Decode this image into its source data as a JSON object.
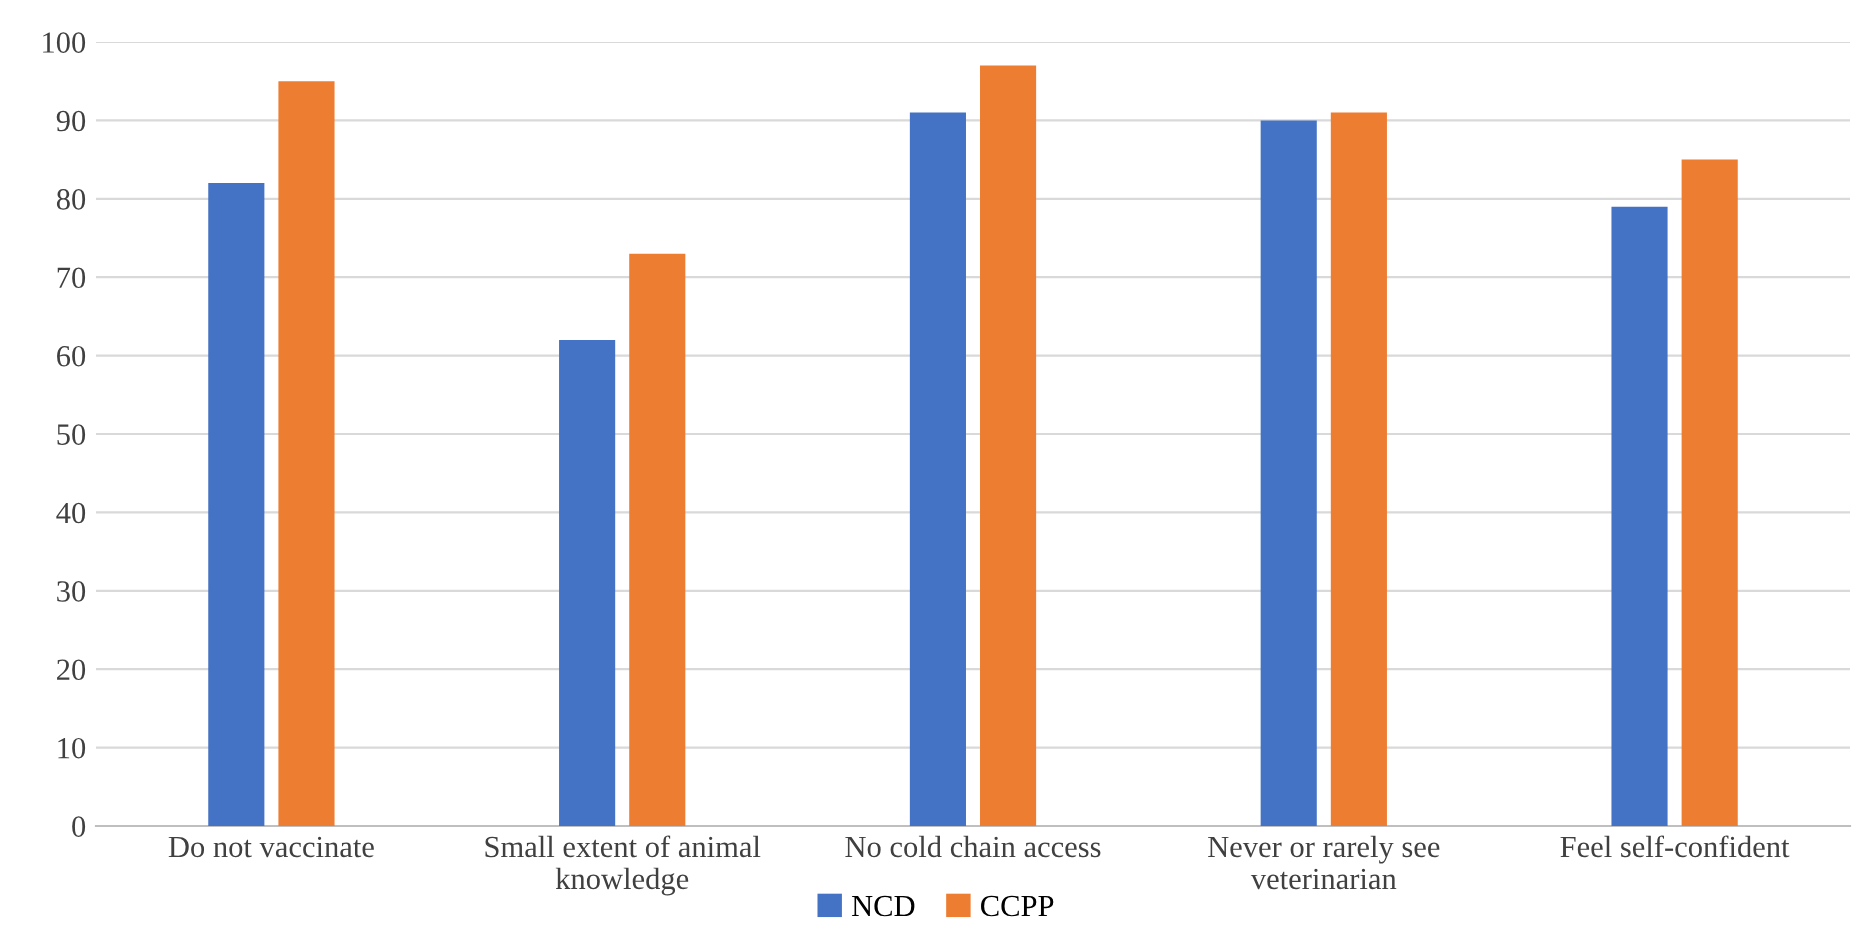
{
  "chart_data": {
    "type": "bar",
    "categories": [
      "Do not vaccinate",
      "Small extent of animal\nknowledge",
      "No cold chain access",
      "Never or rarely see\nveterinarian",
      "Feel self-confident"
    ],
    "series": [
      {
        "name": "NCD",
        "color": "#4472c4",
        "values": [
          82,
          62,
          91,
          90,
          79
        ]
      },
      {
        "name": "CCPP",
        "color": "#ed7d31",
        "values": [
          95,
          73,
          97,
          91,
          85
        ]
      }
    ],
    "ylim": [
      0,
      100
    ],
    "yticks": [
      0,
      10,
      20,
      30,
      40,
      50,
      60,
      70,
      80,
      90,
      100
    ],
    "grid": "y",
    "legend": "bottom"
  }
}
